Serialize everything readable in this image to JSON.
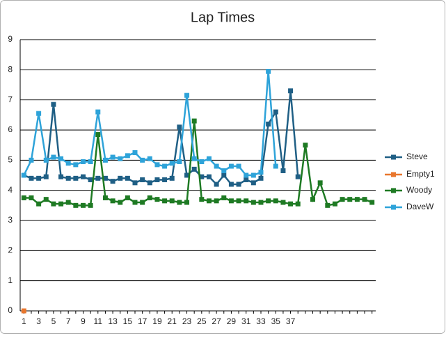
{
  "chart_data": {
    "type": "line",
    "title": "Lap Times",
    "categories": [
      1,
      null,
      3,
      null,
      5,
      null,
      7,
      null,
      9,
      null,
      11,
      null,
      13,
      null,
      15,
      null,
      17,
      null,
      19,
      null,
      21,
      null,
      23,
      null,
      25,
      null,
      27,
      null,
      29,
      null,
      31,
      null,
      33,
      null,
      35,
      null,
      37,
      null,
      null,
      null,
      null,
      null,
      null,
      null,
      null,
      null,
      null,
      null
    ],
    "ylim": [
      0,
      9
    ],
    "yticks": [
      0,
      1,
      2,
      3,
      4,
      5,
      6,
      7,
      8,
      9
    ],
    "grid": true,
    "legend": "right",
    "series": [
      {
        "name": "Steve",
        "color": "#1f5f85",
        "values": [
          4.5,
          4.4,
          4.4,
          4.45,
          6.85,
          4.45,
          4.4,
          4.4,
          4.45,
          4.35,
          4.4,
          4.4,
          4.3,
          4.4,
          4.4,
          4.25,
          4.35,
          4.25,
          4.35,
          4.35,
          4.4,
          6.1,
          4.5,
          4.7,
          4.45,
          4.45,
          4.2,
          4.5,
          4.2,
          4.2,
          4.35,
          4.25,
          4.4,
          6.2,
          6.6,
          4.65,
          7.3,
          4.45,
          null,
          null,
          null,
          null,
          null,
          null,
          null,
          null,
          null,
          null
        ]
      },
      {
        "name": "Empty1",
        "color": "#e8762d",
        "values": [
          0,
          null,
          null,
          null,
          null,
          null,
          null,
          null,
          null,
          null,
          null,
          null,
          null,
          null,
          null,
          null,
          null,
          null,
          null,
          null,
          null,
          null,
          null,
          null,
          null,
          null,
          null,
          null,
          null,
          null,
          null,
          null,
          null,
          null,
          null,
          null,
          null,
          null,
          null,
          null,
          null,
          null,
          null,
          null,
          null,
          null,
          null,
          null
        ]
      },
      {
        "name": "Woody",
        "color": "#1e7a23",
        "values": [
          3.75,
          3.75,
          3.55,
          3.7,
          3.55,
          3.55,
          3.6,
          3.5,
          3.5,
          3.5,
          5.85,
          3.75,
          3.65,
          3.6,
          3.75,
          3.6,
          3.6,
          3.75,
          3.7,
          3.65,
          3.65,
          3.6,
          3.6,
          6.3,
          3.7,
          3.65,
          3.65,
          3.75,
          3.65,
          3.65,
          3.65,
          3.6,
          3.6,
          3.65,
          3.65,
          3.6,
          3.55,
          3.55,
          5.5,
          3.7,
          4.25,
          3.5,
          3.55,
          3.7,
          3.7,
          3.7,
          3.7,
          3.6
        ]
      },
      {
        "name": "DaveW",
        "color": "#2ea3d9",
        "values": [
          4.5,
          5.0,
          6.55,
          5.0,
          5.1,
          5.05,
          4.9,
          4.85,
          4.95,
          4.95,
          6.6,
          5.0,
          5.1,
          5.05,
          5.15,
          5.25,
          5.0,
          5.05,
          4.85,
          4.8,
          4.9,
          4.95,
          7.15,
          5.05,
          4.95,
          5.05,
          4.8,
          4.65,
          4.8,
          4.8,
          4.5,
          4.5,
          4.6,
          7.95,
          4.8,
          null,
          null,
          null,
          null,
          null,
          null,
          null,
          null,
          null,
          null,
          null,
          null,
          null
        ]
      }
    ]
  }
}
